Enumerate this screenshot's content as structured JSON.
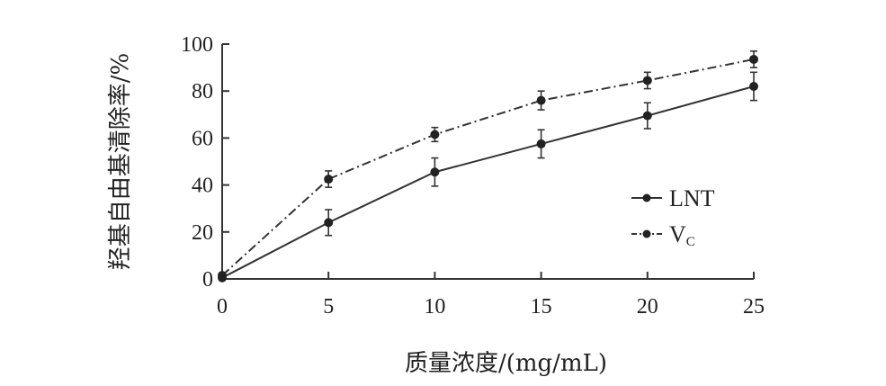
{
  "chart_data": {
    "type": "line",
    "xlabel": "质量浓度/(mg/mL)",
    "ylabel": "羟基自由基清除率/%",
    "x": [
      0,
      5,
      10,
      15,
      20,
      25
    ],
    "xlim": [
      0,
      25
    ],
    "ylim": [
      0,
      100
    ],
    "xticks": [
      0,
      5,
      10,
      15,
      20,
      25
    ],
    "yticks": [
      0,
      20,
      40,
      60,
      80,
      100
    ],
    "grid": false,
    "legend_position": "center-right",
    "series": [
      {
        "name": "LNT",
        "style": "solid",
        "color": "#333333",
        "values": [
          0.5,
          24,
          45.5,
          57.5,
          69.5,
          82
        ],
        "errors": [
          1,
          5.5,
          6,
          6,
          5.5,
          6
        ]
      },
      {
        "name": "VC",
        "legend_main": "V",
        "legend_sub": "C",
        "style": "dashdot",
        "color": "#333333",
        "values": [
          1.5,
          42.5,
          61.5,
          76,
          84.5,
          93.5
        ],
        "errors": [
          1,
          3.5,
          3,
          4,
          3.5,
          3.5
        ]
      }
    ]
  }
}
